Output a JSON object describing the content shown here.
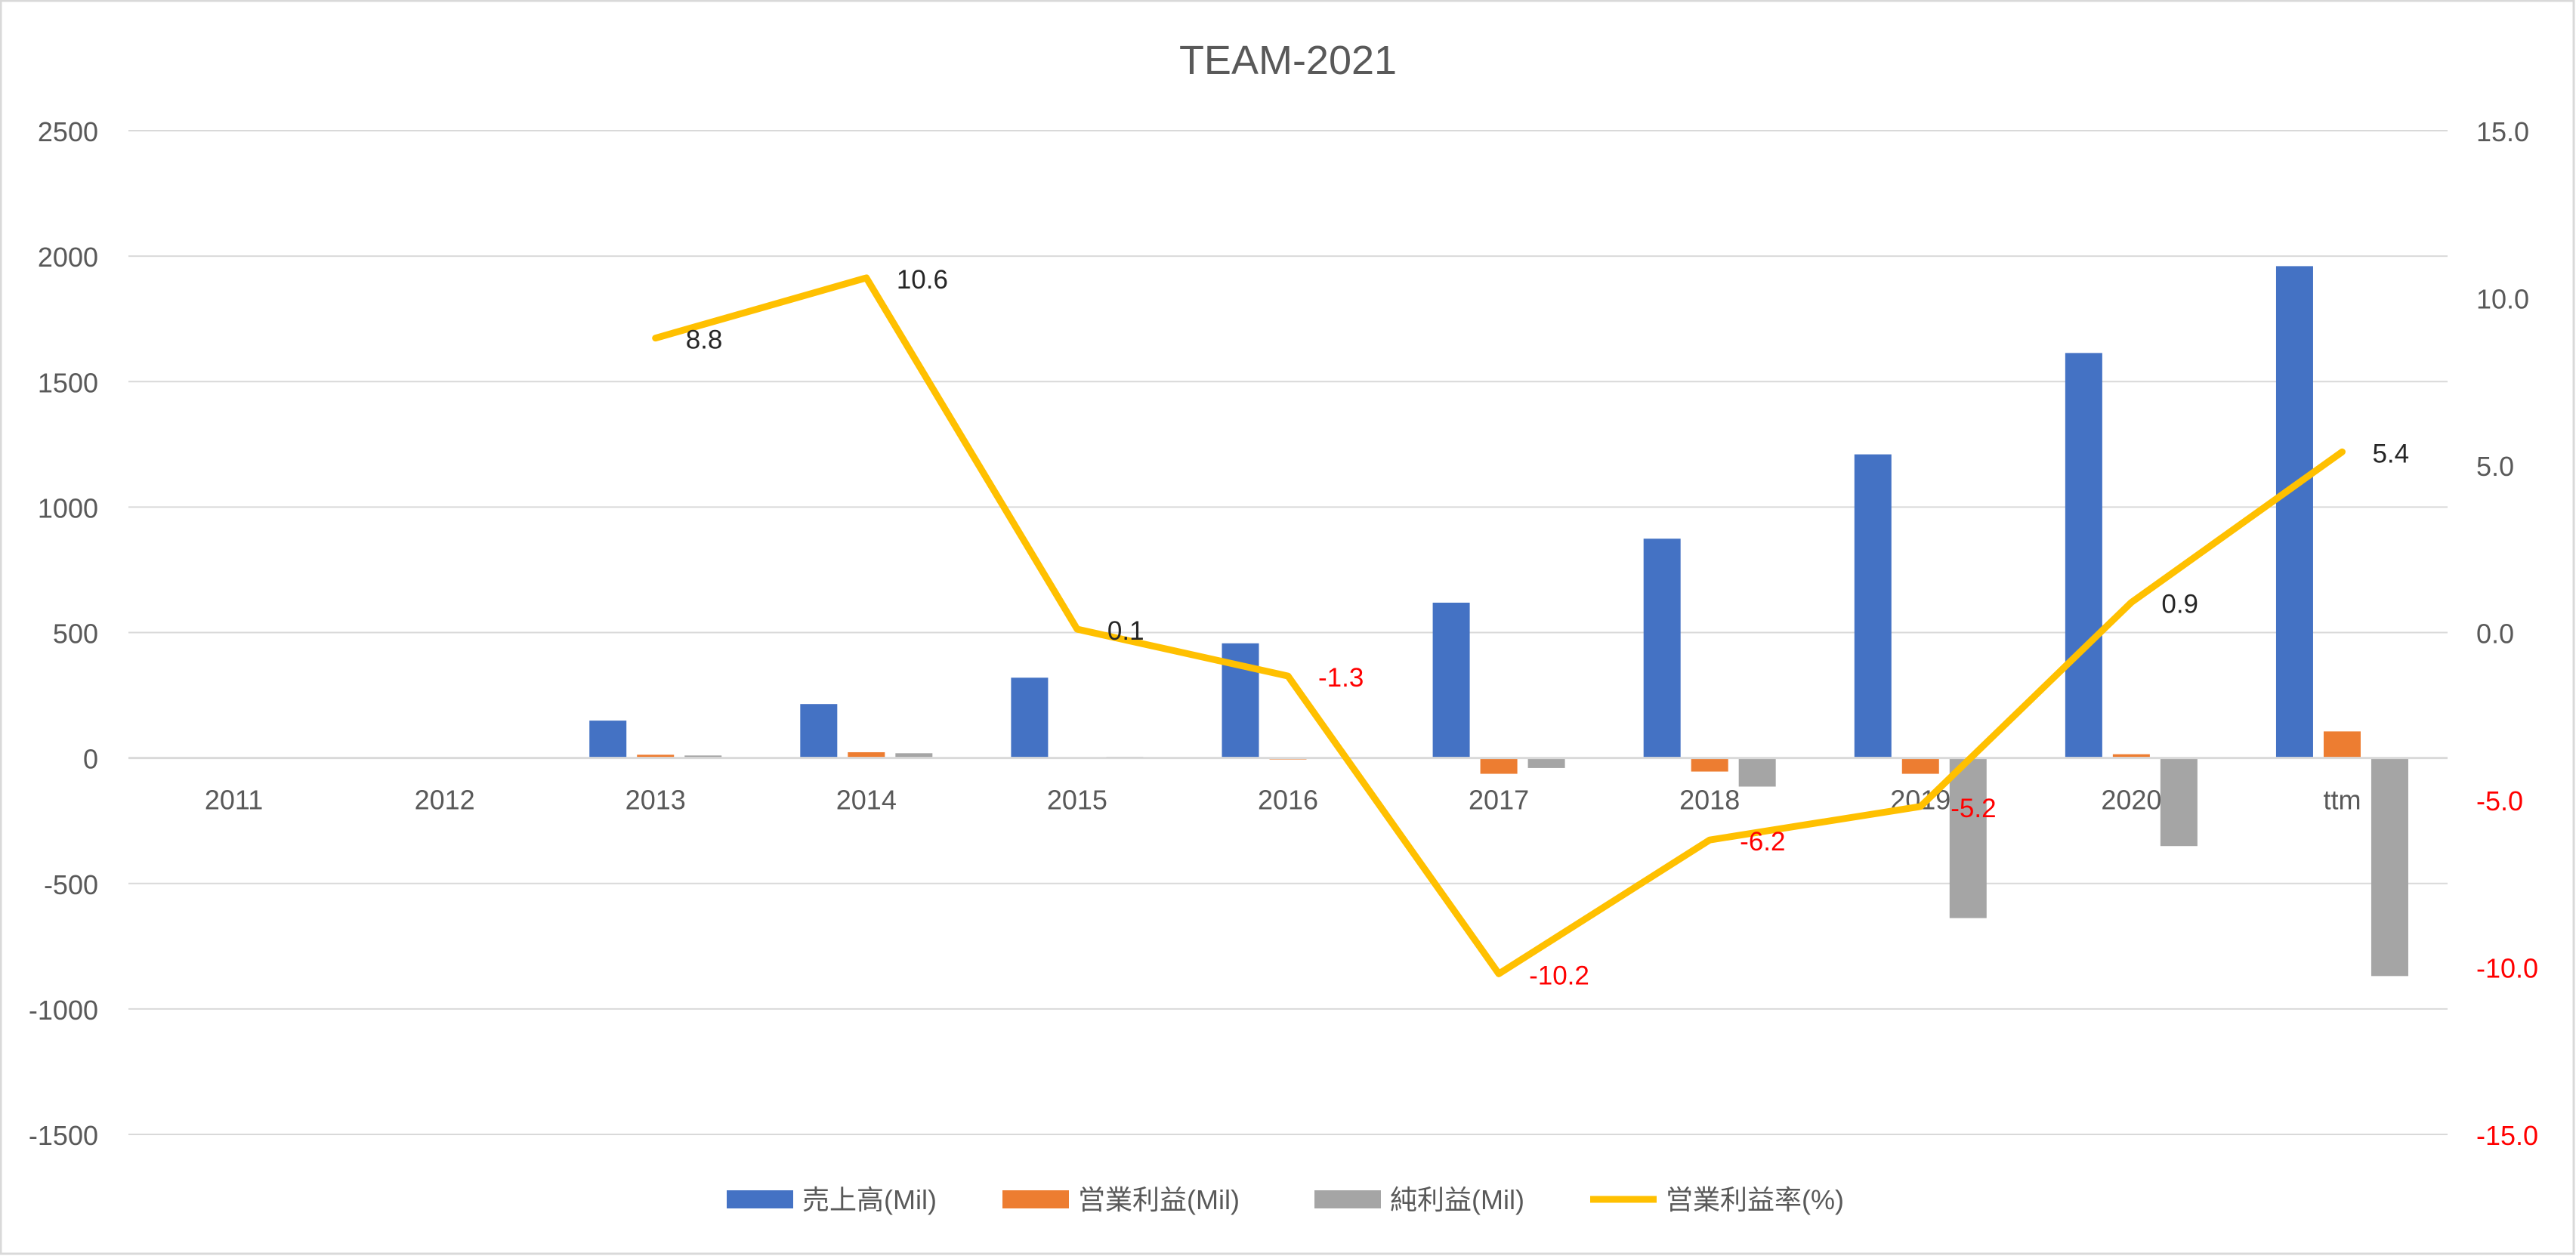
{
  "chart_data": {
    "type": "bar",
    "title": "TEAM-2021",
    "categories": [
      "2011",
      "2012",
      "2013",
      "2014",
      "2015",
      "2016",
      "2017",
      "2018",
      "2019",
      "2020",
      "ttm"
    ],
    "series": [
      {
        "name": "売上高(Mil)",
        "kind": "bar",
        "axis": "left",
        "color": "#4472C4",
        "values": [
          null,
          null,
          149,
          215,
          320,
          457,
          619,
          874,
          1210,
          1614,
          1960
        ]
      },
      {
        "name": "営業利益(Mil)",
        "kind": "bar",
        "axis": "left",
        "color": "#ED7D31",
        "values": [
          null,
          null,
          13,
          23,
          0,
          -6,
          -63,
          -54,
          -63,
          15,
          106
        ]
      },
      {
        "name": "純利益(Mil)",
        "kind": "bar",
        "axis": "left",
        "color": "#A5A5A5",
        "values": [
          null,
          null,
          10,
          19,
          5,
          0,
          -40,
          -114,
          -638,
          -351,
          -869
        ]
      },
      {
        "name": "営業利益率(%)",
        "kind": "line",
        "axis": "right",
        "color": "#FFC000",
        "values": [
          null,
          null,
          8.8,
          10.6,
          0.1,
          -1.3,
          -10.2,
          -6.2,
          -5.2,
          0.9,
          5.4
        ],
        "labels": [
          "",
          "",
          "8.8",
          "10.6",
          "0.1",
          "-1.3",
          "-10.2",
          "-6.2",
          "-5.2",
          "0.9",
          "5.4"
        ]
      }
    ],
    "y_left": {
      "min": -1500,
      "max": 2500,
      "ticks": [
        "2500",
        "2000",
        "1500",
        "1000",
        "500",
        "0",
        "-500",
        "-1000",
        "-1500"
      ]
    },
    "y_right": {
      "min": -15,
      "max": 15,
      "ticks": [
        "15.0",
        "10.0",
        "5.0",
        "0.0",
        "-5.0",
        "-10.0",
        "-15.0"
      ]
    },
    "negative_label_color": "#FF0000",
    "grid": true,
    "legend_position": "bottom"
  }
}
